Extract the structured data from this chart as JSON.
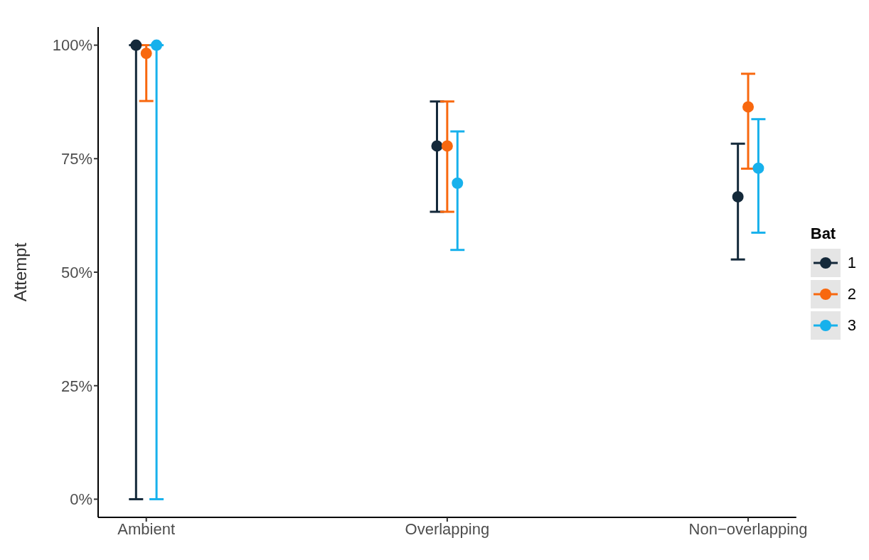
{
  "chart_data": {
    "type": "scatter",
    "ylabel": "Attempt",
    "legend_title": "Bat",
    "legend": "right",
    "marker": "circle",
    "grid": false,
    "categories": [
      "Ambient",
      "Overlapping",
      "Non−overlapping"
    ],
    "ylim": [
      -4,
      104
    ],
    "yticks": [
      {
        "value": 0,
        "label": "0%"
      },
      {
        "value": 25,
        "label": "25%"
      },
      {
        "value": 50,
        "label": "50%"
      },
      {
        "value": 75,
        "label": "75%"
      },
      {
        "value": 100,
        "label": "100%"
      }
    ],
    "series": [
      {
        "name": "1",
        "color": "#14293a",
        "values": [
          100,
          77.8,
          66.6
        ],
        "errors": [
          [
            0,
            100
          ],
          [
            63.3,
            87.6
          ],
          [
            52.8,
            78.3
          ]
        ]
      },
      {
        "name": "2",
        "color": "#f8680f",
        "values": [
          98.2,
          77.8,
          86.4
        ],
        "errors": [
          [
            87.7,
            100
          ],
          [
            63.3,
            87.6
          ],
          [
            72.8,
            93.7
          ]
        ]
      },
      {
        "name": "3",
        "color": "#17b1ec",
        "values": [
          100,
          69.6,
          72.9
        ],
        "errors": [
          [
            0,
            100
          ],
          [
            54.9,
            81.0
          ],
          [
            58.7,
            83.7
          ]
        ]
      }
    ]
  }
}
